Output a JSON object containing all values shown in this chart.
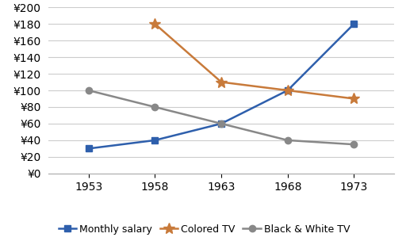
{
  "years": [
    1953,
    1958,
    1963,
    1968,
    1973
  ],
  "monthly_salary": [
    30,
    40,
    60,
    100,
    180
  ],
  "colored_tv": [
    null,
    180,
    110,
    100,
    90
  ],
  "black_white_tv": [
    100,
    80,
    60,
    40,
    35
  ],
  "salary_color": "#2E5FAC",
  "colored_tv_color": "#C87A3A",
  "bw_tv_color": "#888888",
  "marker_salary": "s",
  "marker_colored": "*",
  "marker_bw": "o",
  "ylim": [
    0,
    200
  ],
  "ytick_step": 20,
  "legend_labels": [
    "Monthly salary",
    "Colored TV",
    "Black & White TV"
  ],
  "background_color": "#ffffff",
  "grid_color": "#cccccc",
  "tick_fontsize": 10,
  "legend_fontsize": 9
}
